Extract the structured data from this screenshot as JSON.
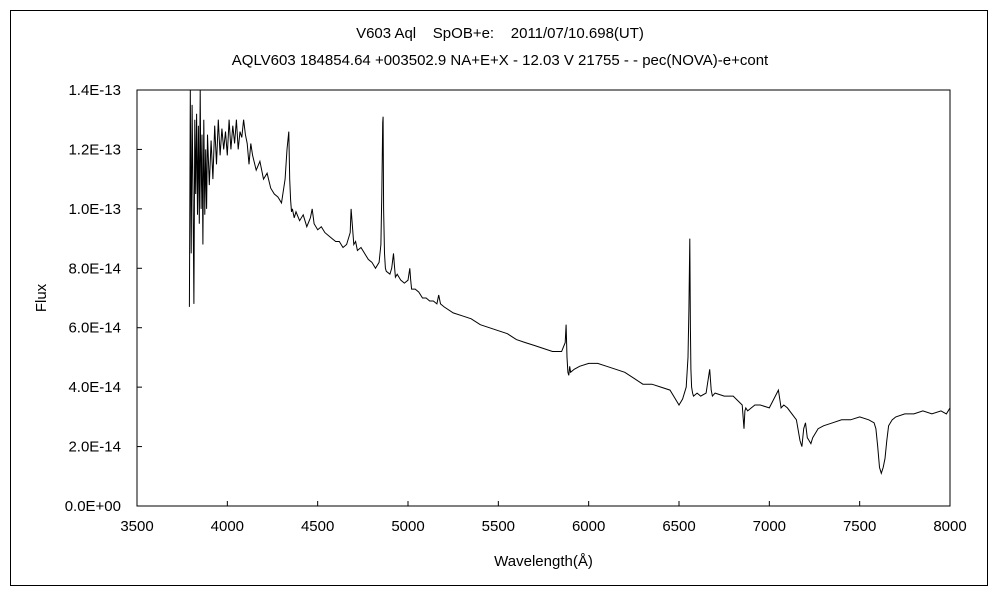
{
  "chart_data": {
    "type": "line",
    "title": "V603 Aql    SpOB+e:    2011/07/10.698(UT)",
    "subtitle": "AQLV603 184854.64 +003502.9 NA+E+X - 12.03 V 21755 - - pec(NOVA)-e+cont",
    "xlabel": "Wavelength(Å)",
    "ylabel": "Flux",
    "xlim": [
      3500,
      8000
    ],
    "ylim": [
      0,
      1.4e-13
    ],
    "grid": false,
    "legend": "none",
    "line_color": "#000000",
    "xticks": [
      3500,
      4000,
      4500,
      5000,
      5500,
      6000,
      6500,
      7000,
      7500,
      8000
    ],
    "xtick_labels": [
      "3500",
      "4000",
      "4500",
      "5000",
      "5500",
      "6000",
      "6500",
      "7000",
      "7500",
      "8000"
    ],
    "yticks": [
      0,
      2e-14,
      4e-14,
      6e-14,
      8e-14,
      1e-13,
      1.2e-13,
      1.4e-13
    ],
    "ytick_labels": [
      "0.0E+00",
      "2.0E-14",
      "4.0E-14",
      "6.0E-14",
      "8.0E-14",
      "1.0E-13",
      "1.2E-13",
      "1.4E-13"
    ],
    "series": [
      {
        "x": [
          3790,
          3795,
          3800,
          3805,
          3810,
          3815,
          3820,
          3825,
          3830,
          3835,
          3840,
          3845,
          3850,
          3855,
          3860,
          3865,
          3870,
          3875,
          3880,
          3885,
          3890,
          3900,
          3910,
          3920,
          3930,
          3940,
          3950,
          3960,
          3970,
          3980,
          3990,
          4000,
          4010,
          4020,
          4030,
          4040,
          4050,
          4060,
          4070,
          4080,
          4090,
          4100,
          4110,
          4120,
          4130,
          4140,
          4160,
          4180,
          4200,
          4220,
          4240,
          4260,
          4280,
          4300,
          4320,
          4330,
          4340,
          4345,
          4350,
          4355,
          4360,
          4370,
          4380,
          4400,
          4420,
          4440,
          4460,
          4470,
          4480,
          4500,
          4520,
          4540,
          4560,
          4580,
          4600,
          4620,
          4640,
          4660,
          4680,
          4685,
          4690,
          4700,
          4710,
          4720,
          4740,
          4760,
          4780,
          4800,
          4820,
          4840,
          4850,
          4855,
          4860,
          4862,
          4865,
          4870,
          4875,
          4880,
          4900,
          4910,
          4920,
          4925,
          4930,
          4940,
          4960,
          4980,
          5000,
          5010,
          5015,
          5020,
          5040,
          5060,
          5080,
          5100,
          5120,
          5140,
          5160,
          5170,
          5180,
          5200,
          5250,
          5300,
          5350,
          5400,
          5450,
          5500,
          5550,
          5600,
          5650,
          5700,
          5750,
          5800,
          5850,
          5870,
          5875,
          5880,
          5885,
          5890,
          5895,
          5900,
          5920,
          5950,
          6000,
          6050,
          6100,
          6150,
          6200,
          6250,
          6300,
          6350,
          6400,
          6450,
          6480,
          6500,
          6520,
          6540,
          6550,
          6555,
          6560,
          6563,
          6566,
          6570,
          6575,
          6580,
          6600,
          6620,
          6650,
          6670,
          6678,
          6685,
          6700,
          6750,
          6800,
          6850,
          6860,
          6865,
          6870,
          6880,
          6900,
          6920,
          6950,
          7000,
          7050,
          7065,
          7080,
          7100,
          7150,
          7170,
          7180,
          7190,
          7200,
          7210,
          7220,
          7230,
          7240,
          7250,
          7270,
          7300,
          7350,
          7400,
          7450,
          7500,
          7550,
          7580,
          7590,
          7600,
          7610,
          7620,
          7630,
          7640,
          7650,
          7660,
          7680,
          7700,
          7750,
          7800,
          7850,
          7900,
          7950,
          7980,
          8000
        ],
        "y": [
          6.7e-14,
          1.4e-13,
          8.5e-14,
          1.35e-13,
          1.05e-13,
          6.8e-14,
          1.3e-13,
          1.05e-13,
          1.32e-13,
          9.8e-14,
          1.28e-13,
          9.5e-14,
          1.4e-13,
          1e-13,
          1.25e-13,
          8.8e-14,
          1.3e-13,
          9.8e-14,
          1.2e-13,
          1e-13,
          1.25e-13,
          1.08e-13,
          1.23e-13,
          1.1e-13,
          1.28e-13,
          1.15e-13,
          1.3e-13,
          1.18e-13,
          1.27e-13,
          1.2e-13,
          1.26e-13,
          1.18e-13,
          1.3e-13,
          1.2e-13,
          1.28e-13,
          1.22e-13,
          1.3e-13,
          1.2e-13,
          1.26e-13,
          1.24e-13,
          1.3e-13,
          1.25e-13,
          1.22e-13,
          1.15e-13,
          1.22e-13,
          1.18e-13,
          1.13e-13,
          1.16e-13,
          1.1e-13,
          1.12e-13,
          1.07e-13,
          1.05e-13,
          1.04e-13,
          1.02e-13,
          1.1e-13,
          1.2e-13,
          1.26e-13,
          1.1e-13,
          1.03e-13,
          9.9e-14,
          1e-13,
          9.7e-14,
          9.9e-14,
          9.6e-14,
          9.8e-14,
          9.4e-14,
          9.7e-14,
          1e-13,
          9.5e-14,
          9.3e-14,
          9.4e-14,
          9.2e-14,
          9.1e-14,
          9e-14,
          8.9e-14,
          8.9e-14,
          8.7e-14,
          8.8e-14,
          9.2e-14,
          1e-13,
          9.6e-14,
          8.8e-14,
          8.9e-14,
          8.6e-14,
          8.7e-14,
          8.5e-14,
          8.3e-14,
          8.2e-14,
          8e-14,
          8.2e-14,
          8.8e-14,
          1.05e-13,
          1.29e-13,
          1.31e-13,
          1e-13,
          8.5e-14,
          8e-14,
          7.9e-14,
          7.8e-14,
          8e-14,
          8.5e-14,
          8.1e-14,
          7.7e-14,
          7.8e-14,
          7.6e-14,
          7.5e-14,
          7.6e-14,
          8e-14,
          7.6e-14,
          7.3e-14,
          7.3e-14,
          7.2e-14,
          7e-14,
          7e-14,
          6.9e-14,
          6.9e-14,
          6.8e-14,
          7.1e-14,
          6.8e-14,
          6.7e-14,
          6.5e-14,
          6.4e-14,
          6.3e-14,
          6.1e-14,
          6e-14,
          5.9e-14,
          5.8e-14,
          5.6e-14,
          5.5e-14,
          5.4e-14,
          5.3e-14,
          5.2e-14,
          5.2e-14,
          5.5e-14,
          6.1e-14,
          5e-14,
          4.5e-14,
          4.4e-14,
          4.7e-14,
          4.5e-14,
          4.6e-14,
          4.7e-14,
          4.8e-14,
          4.8e-14,
          4.7e-14,
          4.6e-14,
          4.5e-14,
          4.3e-14,
          4.1e-14,
          4.1e-14,
          4e-14,
          3.9e-14,
          3.6e-14,
          3.4e-14,
          3.6e-14,
          4e-14,
          5e-14,
          6.6e-14,
          9e-14,
          6e-14,
          4.6e-14,
          4e-14,
          3.8e-14,
          3.7e-14,
          3.8e-14,
          3.7e-14,
          3.8e-14,
          4.6e-14,
          3.9e-14,
          3.7e-14,
          3.8e-14,
          3.7e-14,
          3.7e-14,
          3.4e-14,
          2.6e-14,
          3.2e-14,
          3.3e-14,
          3.2e-14,
          3.3e-14,
          3.4e-14,
          3.4e-14,
          3.3e-14,
          3.9e-14,
          3.3e-14,
          3.4e-14,
          3.3e-14,
          2.9e-14,
          2.2e-14,
          2e-14,
          2.6e-14,
          2.8e-14,
          2.3e-14,
          2.2e-14,
          2.1e-14,
          2.3e-14,
          2.4e-14,
          2.6e-14,
          2.7e-14,
          2.8e-14,
          2.9e-14,
          2.9e-14,
          3e-14,
          2.9e-14,
          2.8e-14,
          2.6e-14,
          2e-14,
          1.3e-14,
          1.1e-14,
          1.3e-14,
          1.6e-14,
          2.2e-14,
          2.7e-14,
          2.9e-14,
          3e-14,
          3.1e-14,
          3.1e-14,
          3.2e-14,
          3.1e-14,
          3.2e-14,
          3.1e-14,
          3.3e-14
        ]
      }
    ]
  }
}
